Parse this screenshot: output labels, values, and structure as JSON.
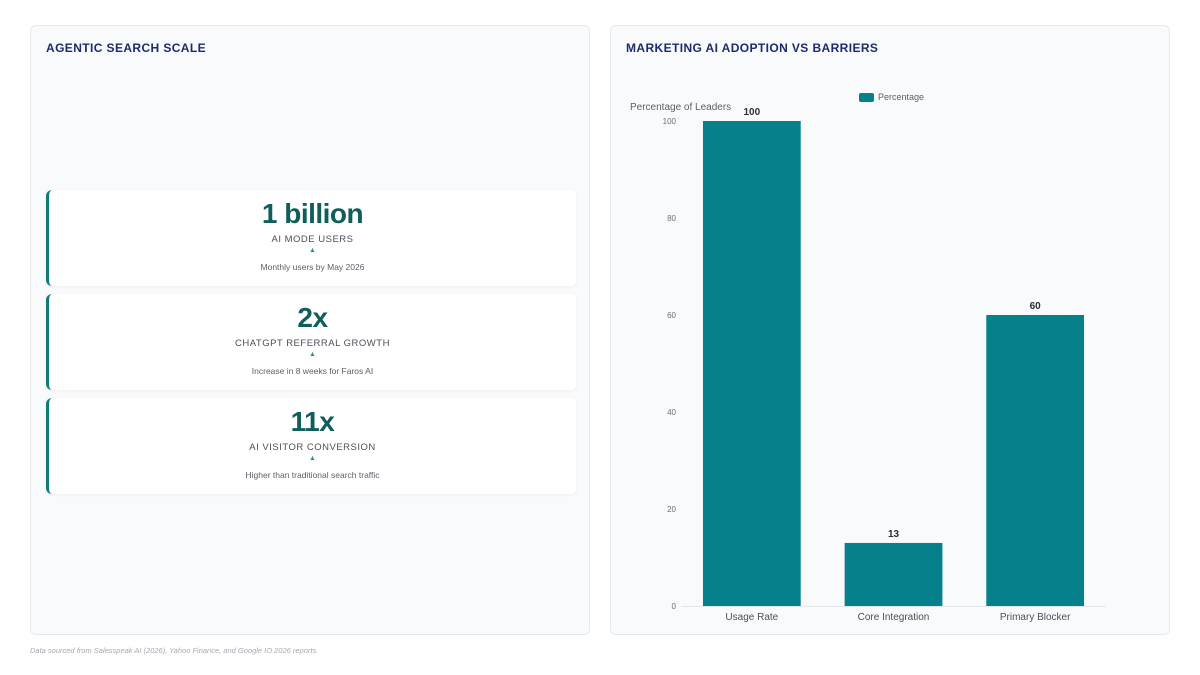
{
  "left_panel": {
    "title": "AGENTIC SEARCH SCALE",
    "metrics": [
      {
        "value": "1 billion",
        "label": "AI MODE USERS",
        "arrow": "▲",
        "sub": "Monthly users by May 2026"
      },
      {
        "value": "2x",
        "label": "CHATGPT REFERRAL GROWTH",
        "arrow": "▲",
        "sub": "Increase in 8 weeks for Faros AI"
      },
      {
        "value": "11x",
        "label": "AI VISITOR CONVERSION",
        "arrow": "▲",
        "sub": "Higher than traditional search traffic"
      }
    ]
  },
  "right_panel": {
    "title": "MARKETING AI ADOPTION VS BARRIERS"
  },
  "chart_data": {
    "type": "bar",
    "title": "MARKETING AI ADOPTION VS BARRIERS",
    "categories": [
      "Usage Rate",
      "Core Integration",
      "Primary Blocker"
    ],
    "series": [
      {
        "name": "Percentage",
        "values": [
          100,
          13,
          60
        ],
        "color": "#06808a"
      }
    ],
    "ylabel": "Percentage of Leaders",
    "xlabel": "",
    "ylim": [
      0,
      100
    ],
    "yticks": [
      0,
      20,
      40,
      60,
      80,
      100
    ],
    "legend": "top-center",
    "grid": false
  },
  "footer": "Data sourced from Salesspeak AI (2026), Yahoo Finance, and Google IO 2026 reports."
}
